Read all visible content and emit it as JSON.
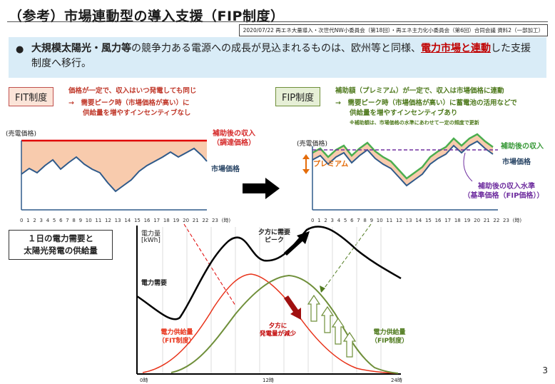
{
  "title": "（参考）市場連動型の導入支援（FIP制度）",
  "source": "2020/07/22 再エネ大量導入・次世代NW小委員会（第18回）・再エネ主力化小委員会（第6回）合同会議 資料2（一部加工）",
  "banner": {
    "bullet": "●",
    "part1": "大規模太陽光・風力等",
    "part2": "の競争力ある電源への成長が見込まれるものは、欧州等と同様、",
    "part3": "電力市場と連動",
    "part4": "した支援制度へ移行。"
  },
  "fit": {
    "tag": "FIT制度",
    "note1": "価格が一定で、収入はいつ発電しても同じ",
    "note2": "→　需要ピーク時（市場価格が高い）に",
    "note3": "供給量を増やすインセンティブなし",
    "axis_label": "(売電価格)",
    "subsidy_label1": "補助後の収入",
    "subsidy_label2": "（調達価格）",
    "market_label": "市場価格"
  },
  "fip": {
    "tag": "FIP制度",
    "note1": "補助額（プレミアム）が一定で、収入は市場価格に連動",
    "note2": "→　需要ピーク時（市場価格が高い）に蓄電池の活用などで",
    "note3": "供給量を増やすインセンティブあり",
    "note4": "※補助額は、市場価格の水準にあわせて一定の頻度で更新",
    "axis_label": "(売電価格)",
    "premium_label": "プレミアム",
    "subsidy_label": "補助後の収入",
    "market_label": "市場価格",
    "base_label1": "補助後の収入水準",
    "base_label2": "（基準価格（FIP価格））"
  },
  "hours": "0 1 2 3 4 5 6 7 8 9 10 11 12 13 14 15 16 17 18 19 20 21 22 23 (時)",
  "bottom": {
    "box_line1": "１日の電力需要と",
    "box_line2": "太陽光発電の供給量",
    "yaxis1": "電力量",
    "yaxis2": "[kWh]",
    "demand_label": "電力需要",
    "peak_label1": "夕方に需要",
    "peak_label2": "ピーク",
    "decrease_label1": "夕方に",
    "decrease_label2": "発電量が減少",
    "fit_supply1": "電力供給量",
    "fit_supply2": "（FIT制度）",
    "fip_supply1": "電力供給量",
    "fip_supply2": "（FIP制度）",
    "x0": "0時",
    "x12": "12時",
    "x24": "24時"
  },
  "page_number": "3",
  "colors": {
    "red": "#e00000",
    "orange_fill": "#f8cbad",
    "market_line": "#2f5a8a",
    "green_line": "#4bae4f",
    "purple_dash": "#7030a0",
    "demand": "#000000",
    "fit_supply": "#e8331a",
    "fip_supply": "#6f8f3a"
  }
}
